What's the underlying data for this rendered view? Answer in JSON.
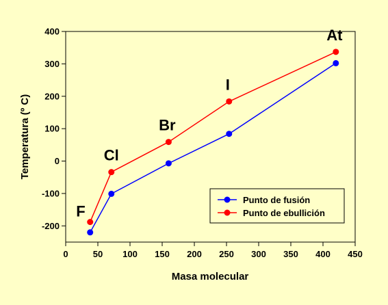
{
  "chart_data": {
    "type": "line",
    "title": "",
    "xlabel": "Masa molecular",
    "ylabel": "Temperatura (º C)",
    "xlim": [
      0,
      450
    ],
    "ylim": [
      -250,
      400
    ],
    "xticks": [
      0,
      50,
      100,
      150,
      200,
      250,
      300,
      350,
      400,
      450
    ],
    "yticks": [
      -200,
      -100,
      0,
      100,
      200,
      300,
      400
    ],
    "grid": false,
    "legend_position": "bottom-right",
    "series": [
      {
        "name": "Punto de fusión",
        "color": "#0000ff",
        "x": [
          38,
          71,
          160,
          254,
          420
        ],
        "y": [
          -220,
          -101,
          -7,
          84,
          302
        ]
      },
      {
        "name": "Punto de ebullición",
        "color": "#ff0000",
        "x": [
          38,
          71,
          160,
          254,
          420
        ],
        "y": [
          -188,
          -34,
          59,
          184,
          337
        ]
      }
    ],
    "annotations": [
      {
        "text": "F",
        "x": 38
      },
      {
        "text": "Cl",
        "x": 71
      },
      {
        "text": "Br",
        "x": 160
      },
      {
        "text": "I",
        "x": 254
      },
      {
        "text": "At",
        "x": 420
      }
    ]
  }
}
